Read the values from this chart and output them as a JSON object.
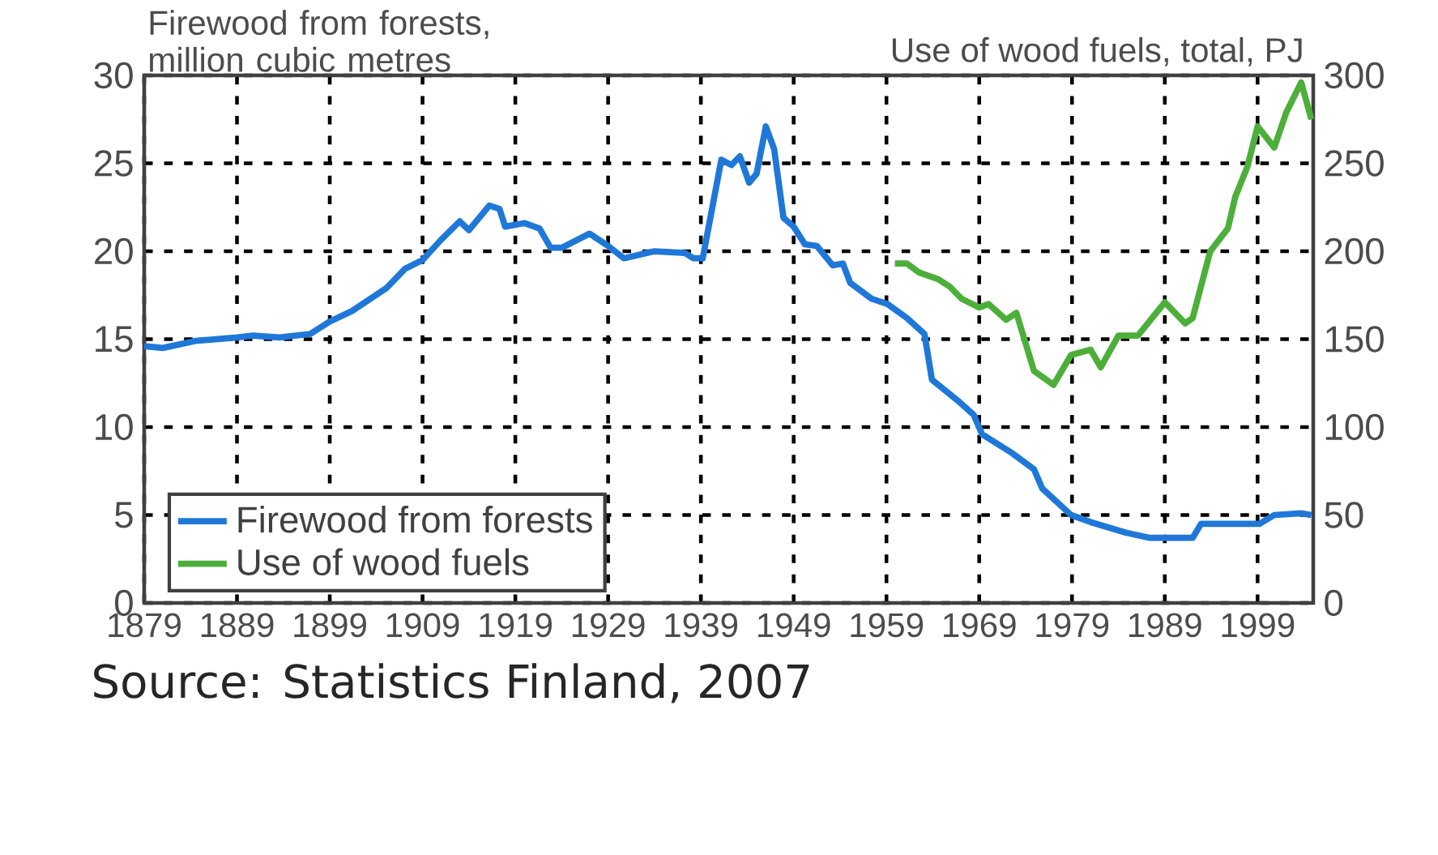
{
  "chart_data": {
    "type": "line",
    "ylabel": "Firewood from forests, million cubic metres",
    "y2label": "Use of wood fuels, total, PJ",
    "annotations": [
      "Source: Statistics Finland, 2007"
    ],
    "xlim": [
      1879,
      2005
    ],
    "xticks": [
      1879,
      1889,
      1899,
      1909,
      1919,
      1929,
      1939,
      1949,
      1959,
      1969,
      1979,
      1989,
      1999
    ],
    "ylim": [
      0,
      30
    ],
    "yticks": [
      0,
      5,
      10,
      15,
      20,
      25,
      30
    ],
    "y2lim": [
      0,
      300
    ],
    "y2ticks": [
      0,
      50,
      100,
      150,
      200,
      250,
      300
    ],
    "grid": true,
    "legend": "bottom left",
    "series": [
      {
        "name": "Firewood from forests",
        "color": "#1f78d8",
        "x": [
          1879,
          1881,
          1884.5,
          1889,
          1890.7,
          1893.6,
          1896.9,
          1899,
          1901.4,
          1905.1,
          1907.1,
          1909,
          1910.9,
          1913,
          1914,
          1916.2,
          1917.3,
          1917.9,
          1920,
          1921.6,
          1922.8,
          1924,
          1927,
          1929,
          1930.7,
          1934,
          1937.3,
          1938.2,
          1939.2,
          1941.2,
          1942.3,
          1943.2,
          1944.2,
          1945,
          1946,
          1946.9,
          1947.9,
          1949,
          1950.2,
          1951.5,
          1953.2,
          1954.3,
          1955.1,
          1957.4,
          1959.1,
          1961.2,
          1963.1,
          1963.9,
          1966.7,
          1968.4,
          1969.3,
          1972.6,
          1974.9,
          1975.8,
          1978.9,
          1981,
          1984.8,
          1987.4,
          1992,
          1992.9,
          1999.2,
          2000.8,
          2003.7,
          2004.8
        ],
        "values": [
          14.6,
          14.5,
          14.9,
          15.1,
          15.2,
          15.1,
          15.3,
          16.0,
          16.6,
          17.9,
          19.0,
          19.5,
          20.6,
          21.7,
          21.2,
          22.6,
          22.4,
          21.4,
          21.6,
          21.3,
          20.2,
          20.2,
          21.0,
          20.3,
          19.6,
          20.0,
          19.9,
          19.6,
          19.6,
          25.2,
          24.9,
          25.4,
          23.9,
          24.4,
          27.1,
          25.8,
          21.9,
          21.4,
          20.4,
          20.3,
          19.2,
          19.3,
          18.2,
          17.3,
          17.0,
          16.2,
          15.3,
          12.7,
          11.5,
          10.7,
          9.6,
          8.5,
          7.6,
          6.5,
          5.0,
          4.6,
          4.0,
          3.7,
          3.7,
          4.5,
          4.5,
          5.0,
          5.1,
          5.0
        ]
      },
      {
        "name": "Use of wood fuels",
        "color": "#4caf3a",
        "axis": "y2",
        "x": [
          1959.9,
          1961.2,
          1962.5,
          1964.6,
          1965.8,
          1967.1,
          1969,
          1970,
          1971.9,
          1973,
          1974.9,
          1977,
          1978.9,
          1981,
          1982.1,
          1984,
          1986.1,
          1989,
          1991.2,
          1992,
          1993.9,
          1995.8,
          1996.6,
          1997.9,
          1999,
          2000.8,
          2002.1,
          2003.7,
          2004.8
        ],
        "values": [
          193,
          193,
          188,
          184,
          180,
          173,
          168,
          170,
          161,
          165,
          132,
          124,
          141,
          144,
          134,
          152,
          152,
          171,
          159,
          162,
          200,
          213,
          231,
          248,
          271,
          259,
          279,
          296,
          275
        ]
      }
    ]
  }
}
